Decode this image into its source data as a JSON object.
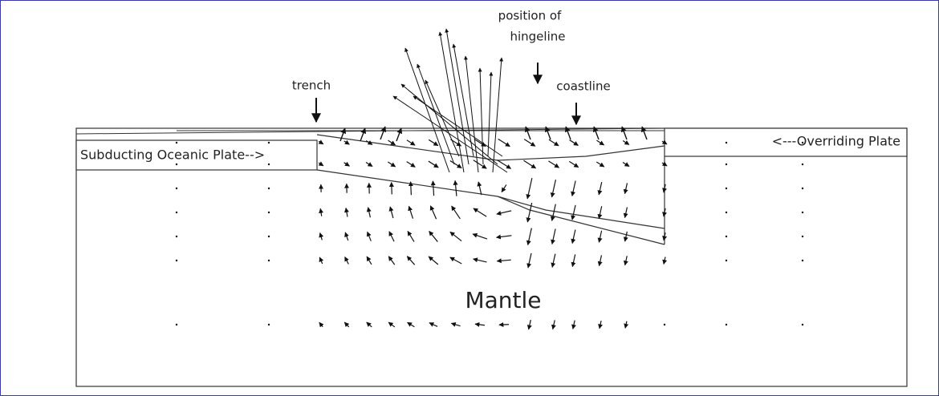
{
  "annotations": {
    "hingeline": [
      "position of",
      "hingeline"
    ],
    "trench": "trench",
    "coastline": "coastline",
    "subducting_plate": "Subducting Oceanic Plate-->",
    "overriding_plate": "<---Overriding Plate",
    "mantle": "Mantle"
  }
}
